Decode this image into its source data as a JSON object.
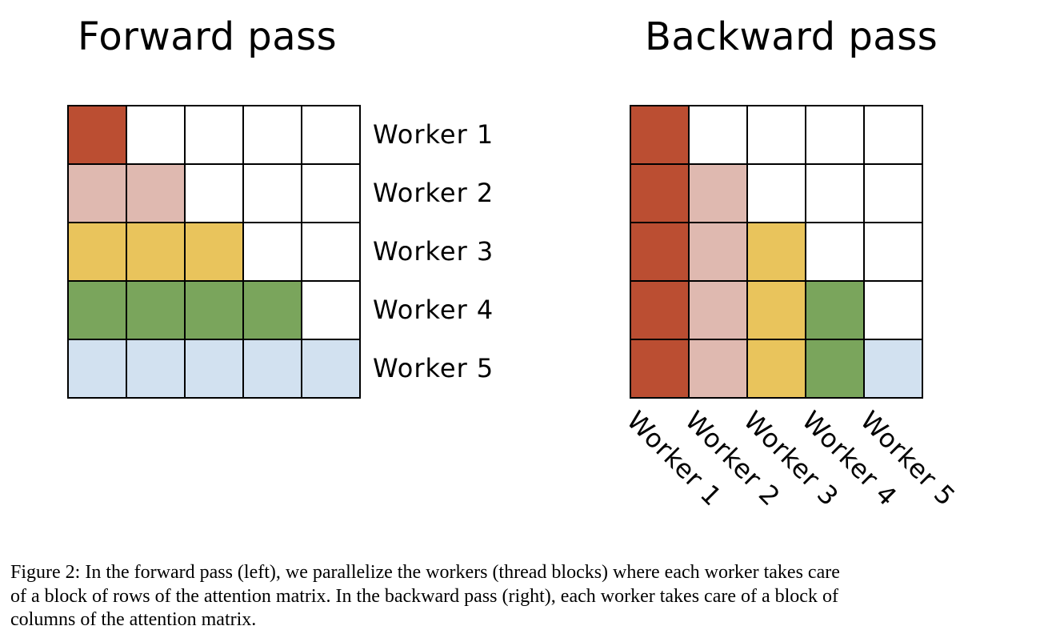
{
  "panels": {
    "forward": {
      "title": "Forward pass",
      "row_labels": [
        "Worker 1",
        "Worker 2",
        "Worker 3",
        "Worker 4",
        "Worker 5"
      ],
      "grid": [
        [
          1,
          0,
          0,
          0,
          0
        ],
        [
          2,
          2,
          0,
          0,
          0
        ],
        [
          3,
          3,
          3,
          0,
          0
        ],
        [
          4,
          4,
          4,
          4,
          0
        ],
        [
          5,
          5,
          5,
          5,
          5
        ]
      ]
    },
    "backward": {
      "title": "Backward pass",
      "col_labels": [
        "Worker 1",
        "Worker 2",
        "Worker 3",
        "Worker 4",
        "Worker 5"
      ],
      "grid": [
        [
          1,
          0,
          0,
          0,
          0
        ],
        [
          1,
          2,
          0,
          0,
          0
        ],
        [
          1,
          2,
          3,
          0,
          0
        ],
        [
          1,
          2,
          3,
          4,
          0
        ],
        [
          1,
          2,
          3,
          4,
          5
        ]
      ]
    }
  },
  "colors": {
    "worker_1": "#BB4E32",
    "worker_2": "#DFB9B0",
    "worker_3": "#E9C45C",
    "worker_4": "#7AA55C",
    "worker_5": "#D2E1F0",
    "empty": "#FFFFFF",
    "grid_border": "#000000"
  },
  "caption": {
    "lines": [
      "Figure 2: In the forward pass (left), we parallelize the workers (thread blocks) where each worker takes care",
      "of a block of rows of the attention matrix. In the backward pass (right), each worker takes care of a block of",
      "columns of the attention matrix."
    ]
  }
}
